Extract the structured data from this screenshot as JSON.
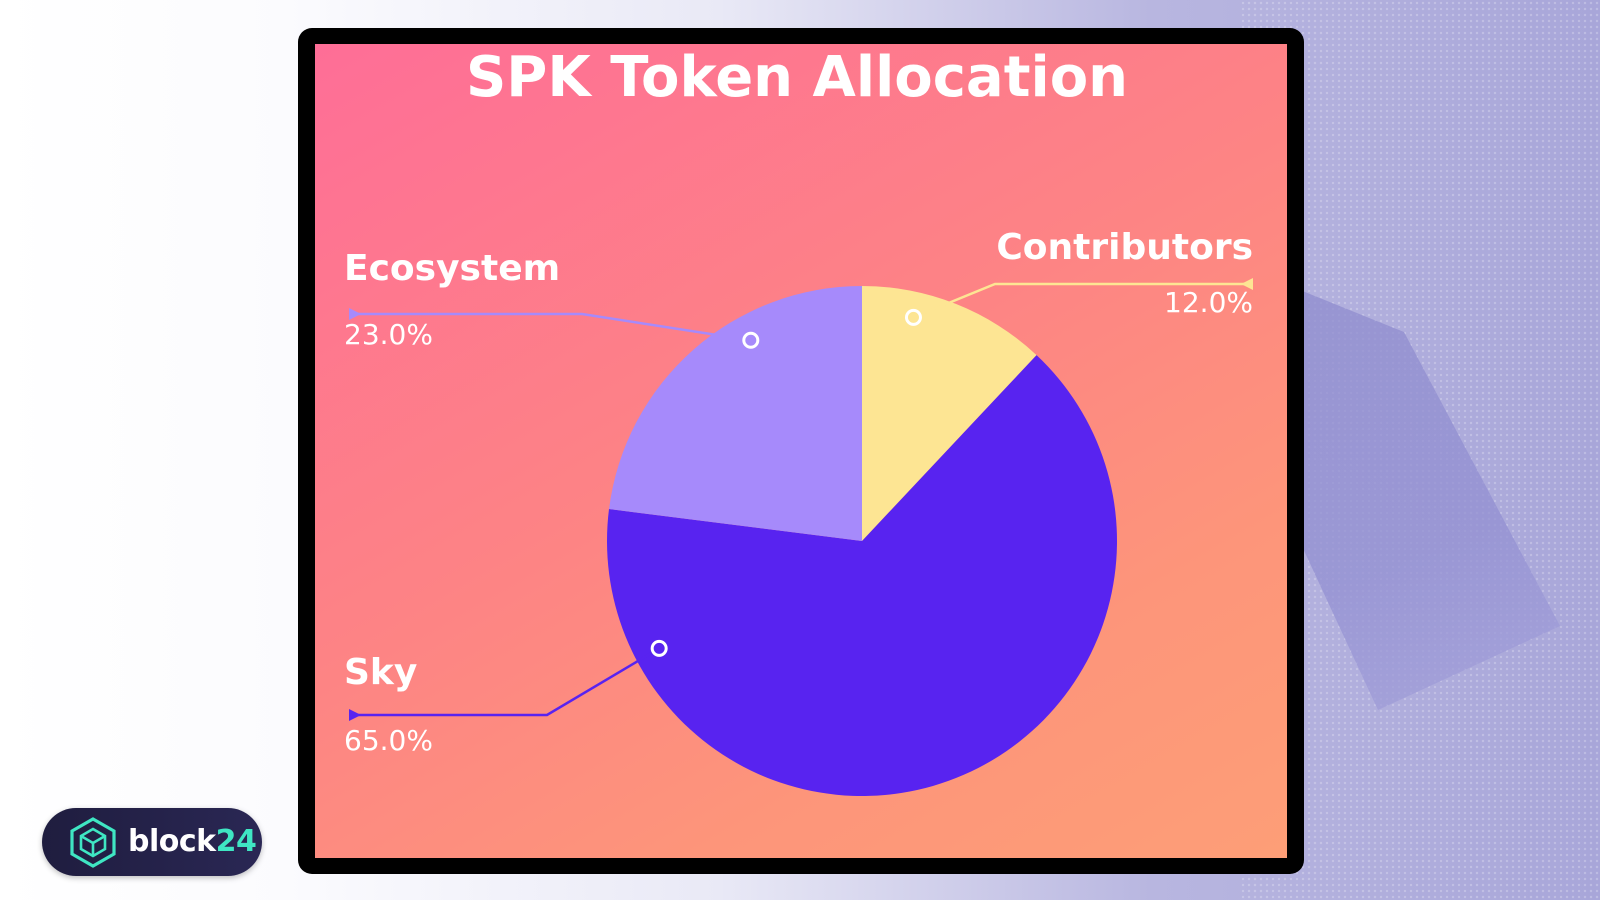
{
  "chart_data": {
    "type": "pie",
    "title": "SPK Token Allocation",
    "start_angle_deg": 0,
    "direction": "clockwise",
    "slices": [
      {
        "label": "Contributors",
        "value": 12.0,
        "value_label": "12.0%",
        "color": "#fde593"
      },
      {
        "label": "Sky",
        "value": 65.0,
        "value_label": "65.0%",
        "color": "#5823f0"
      },
      {
        "label": "Ecosystem",
        "value": 23.0,
        "value_label": "23.0%",
        "color": "#a68afb"
      }
    ],
    "label_color": "#ffffff"
  },
  "logo": {
    "part1": "block",
    "part2": "24",
    "icon": "hexagon-cube-icon",
    "accent": "#3fe6c3"
  }
}
